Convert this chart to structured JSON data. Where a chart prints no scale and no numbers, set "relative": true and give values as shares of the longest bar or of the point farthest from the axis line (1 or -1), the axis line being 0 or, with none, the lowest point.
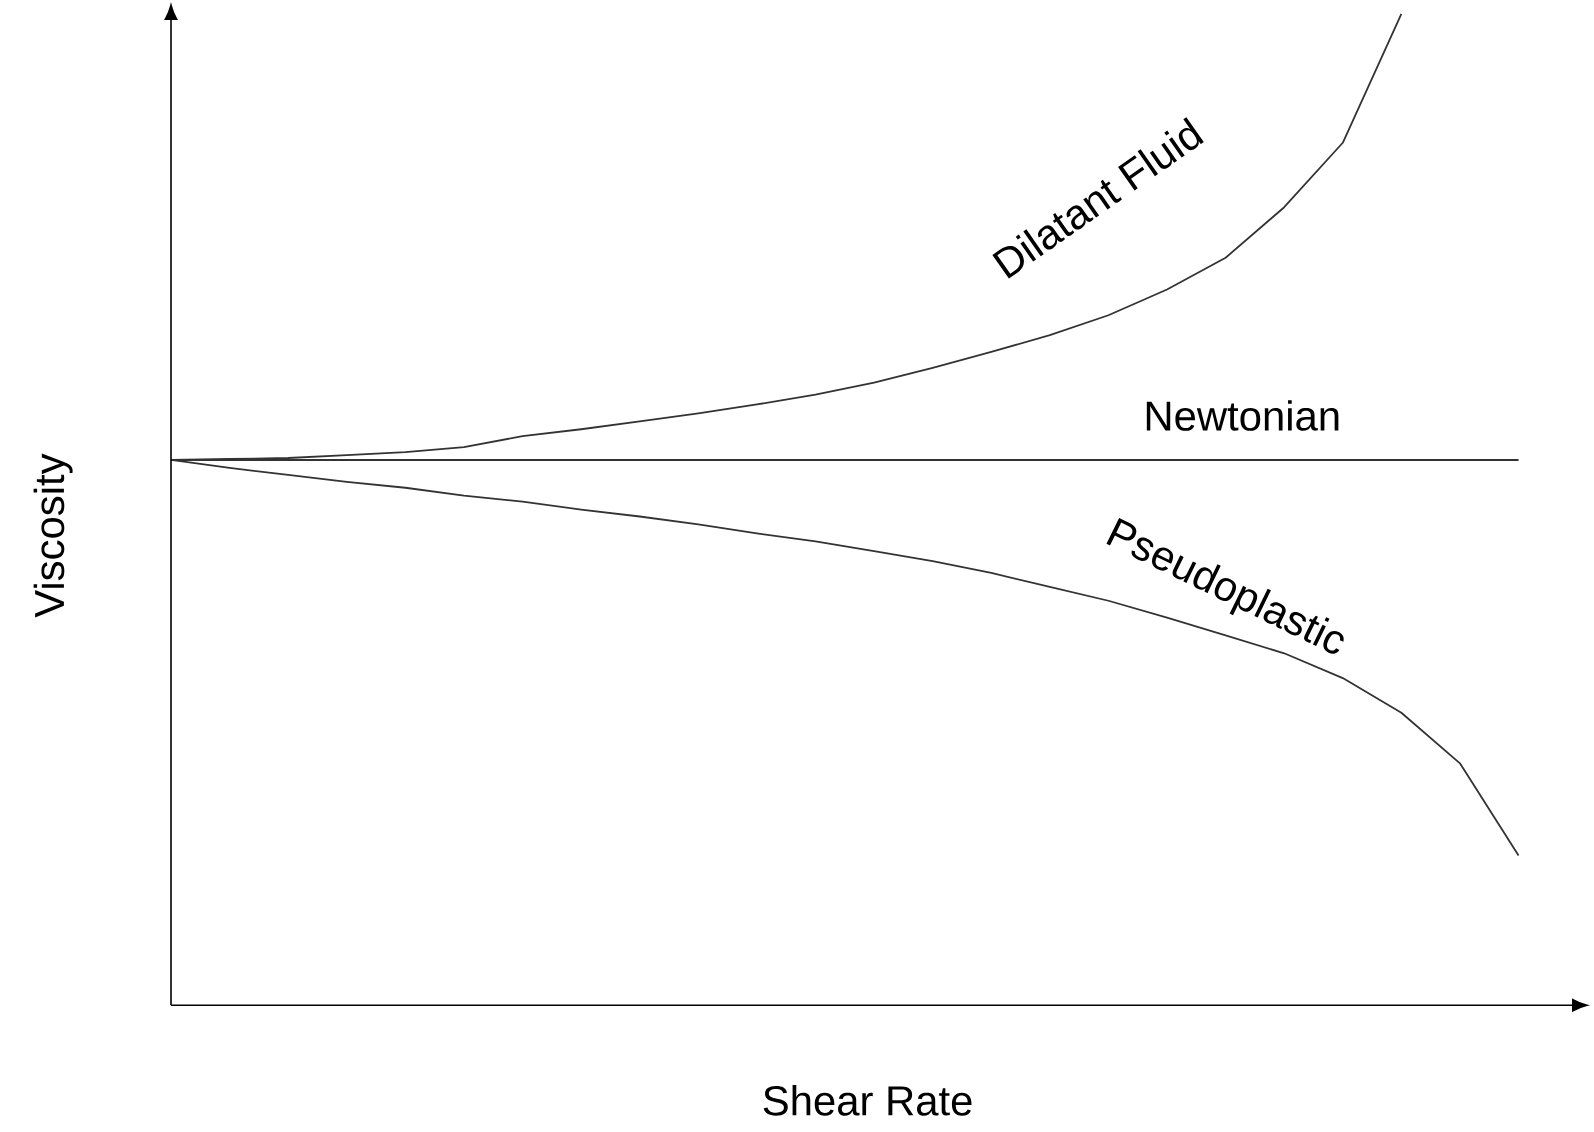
{
  "chart_data": {
    "type": "line",
    "relative": true,
    "xlabel": "Shear Rate",
    "ylabel": "Viscosity",
    "legend": false,
    "marker": "none",
    "line_style": "solid",
    "categories": [
      null,
      null,
      null,
      null,
      null,
      null,
      null,
      null,
      null,
      null,
      null,
      null,
      null,
      null,
      null,
      null,
      null,
      null,
      null,
      null,
      null,
      null,
      null,
      null
    ],
    "series": [
      {
        "name": "Dilatant Fluid",
        "color": "#333333",
        "values": [
          0.55,
          0.551,
          0.552,
          0.555,
          0.558,
          0.563,
          0.574,
          0.581,
          0.589,
          0.597,
          0.606,
          0.616,
          0.628,
          0.643,
          0.659,
          0.676,
          0.696,
          0.722,
          0.754,
          0.805,
          0.87,
          1.0,
          null,
          null
        ]
      },
      {
        "name": "Newtonian",
        "color": "#333333",
        "values": [
          0.55,
          0.55,
          0.55,
          0.55,
          0.55,
          0.55,
          0.55,
          0.55,
          0.55,
          0.55,
          0.55,
          0.55,
          0.55,
          0.55,
          0.55,
          0.55,
          0.55,
          0.55,
          0.55,
          0.55,
          0.55,
          0.55,
          0.55,
          0.55
        ]
      },
      {
        "name": "Pseudoplastic",
        "color": "#333333",
        "values": [
          0.55,
          0.542,
          0.535,
          0.528,
          0.522,
          0.514,
          0.508,
          0.5,
          0.493,
          0.485,
          0.476,
          0.468,
          0.458,
          0.448,
          0.436,
          0.422,
          0.408,
          0.391,
          0.373,
          0.355,
          0.33,
          0.295,
          0.244,
          0.151
        ]
      }
    ]
  }
}
